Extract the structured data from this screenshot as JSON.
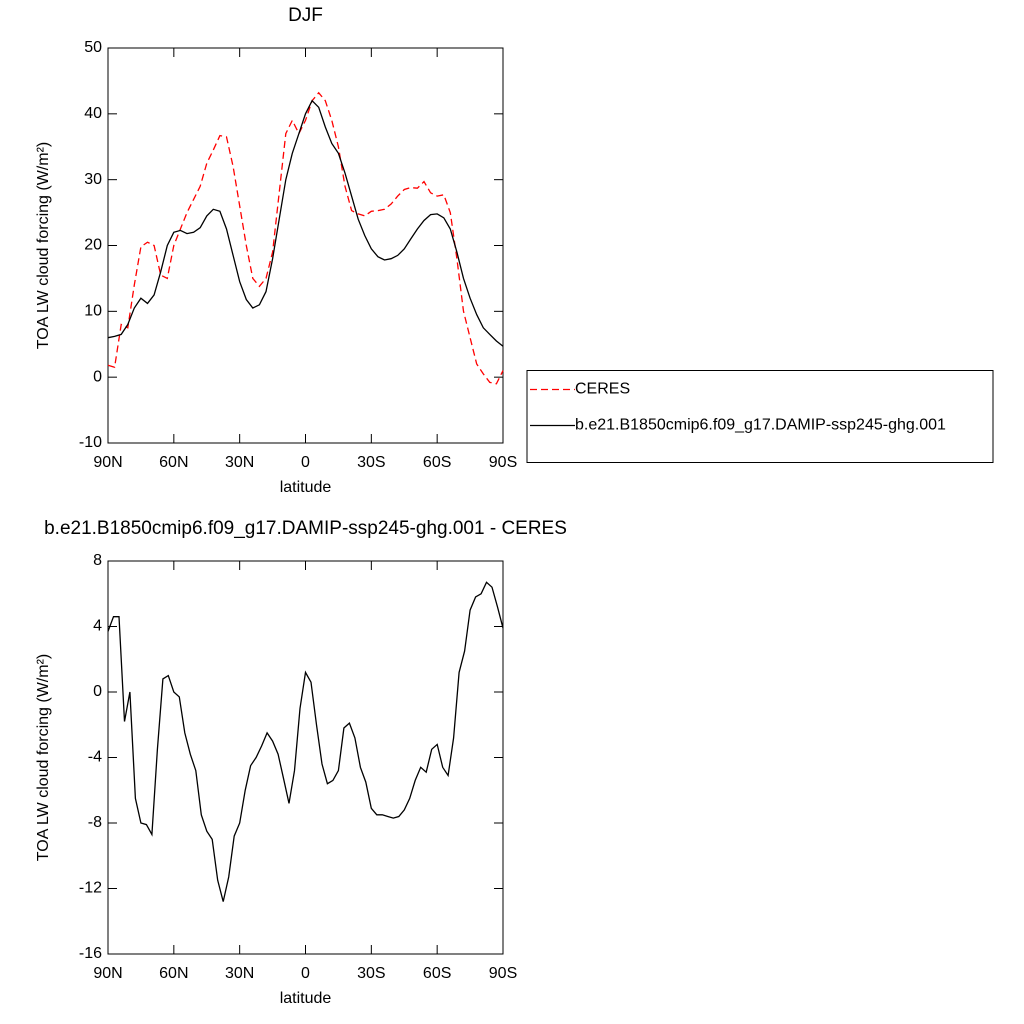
{
  "chart_data": [
    {
      "type": "line",
      "title": "DJF",
      "xlabel": "latitude",
      "ylabel": "TOA LW cloud forcing (W/m²)",
      "xlim": [
        90,
        -90
      ],
      "xticks": [
        {
          "value": 90,
          "label": "90N"
        },
        {
          "value": 60,
          "label": "60N"
        },
        {
          "value": 30,
          "label": "30N"
        },
        0,
        {
          "value": -30,
          "label": "30S"
        },
        {
          "value": -60,
          "label": "60S"
        },
        {
          "value": -90,
          "label": "90S"
        }
      ],
      "ylim": [
        -10,
        50
      ],
      "yticks": [
        -10,
        0,
        10,
        20,
        30,
        40,
        50
      ],
      "x": [
        90,
        87,
        84,
        81,
        78,
        75,
        72,
        69,
        66,
        63,
        60,
        57,
        54,
        51,
        48,
        45,
        42,
        39,
        36,
        33,
        30,
        27,
        24,
        21,
        18,
        15,
        12,
        9,
        6,
        3,
        0,
        -3,
        -6,
        -9,
        -12,
        -15,
        -18,
        -21,
        -24,
        -27,
        -30,
        -33,
        -36,
        -39,
        -42,
        -45,
        -48,
        -51,
        -54,
        -57,
        -60,
        -63,
        -66,
        -69,
        -72,
        -75,
        -78,
        -81,
        -84,
        -87,
        -90
      ],
      "legend": "right",
      "series": [
        {
          "name": "CERES",
          "color": "#ff0000",
          "linestyle": "dashed",
          "values": [
            1.8,
            1.5,
            8,
            7.5,
            14,
            19.8,
            20.5,
            20,
            15.5,
            15,
            20,
            22.5,
            25,
            27,
            29,
            32.5,
            34.5,
            36.7,
            36.5,
            32,
            26,
            20,
            15,
            13.8,
            15,
            19,
            28,
            37,
            39,
            37,
            39,
            42,
            43.2,
            42,
            39,
            35,
            29,
            25.3,
            24.8,
            24.5,
            25.2,
            25.3,
            25.5,
            26.3,
            27.5,
            28.5,
            28.8,
            28.7,
            29.7,
            28,
            27.5,
            27.7,
            25,
            18,
            10,
            6,
            2,
            0.5,
            -0.8,
            -1,
            1
          ]
        },
        {
          "name": "b.e21.B1850cmip6.f09_g17.DAMIP-ssp245-ghg.001",
          "color": "#000000",
          "linestyle": "solid",
          "values": [
            6,
            6.2,
            6.5,
            8,
            10.5,
            12,
            11.2,
            12.5,
            16,
            20,
            22,
            22.3,
            21.8,
            22,
            22.7,
            24.5,
            25.5,
            25.2,
            22.5,
            18.5,
            14.5,
            11.8,
            10.5,
            11,
            13,
            18,
            24,
            30,
            34,
            37,
            40,
            42,
            41,
            38,
            35.5,
            34,
            31,
            27.5,
            24,
            21.5,
            19.5,
            18.3,
            17.8,
            18,
            18.5,
            19.5,
            21,
            22.5,
            23.8,
            24.7,
            24.8,
            24.2,
            22.5,
            19,
            15,
            12,
            9.5,
            7.5,
            6.5,
            5.5,
            4.7
          ]
        }
      ]
    },
    {
      "type": "line",
      "title": "b.e21.B1850cmip6.f09_g17.DAMIP-ssp245-ghg.001 - CERES",
      "xlabel": "latitude",
      "ylabel": "TOA LW cloud forcing (W/m²)",
      "xlim": [
        90,
        -90
      ],
      "xticks": [
        {
          "value": 90,
          "label": "90N"
        },
        {
          "value": 60,
          "label": "60N"
        },
        {
          "value": 30,
          "label": "30N"
        },
        0,
        {
          "value": -30,
          "label": "30S"
        },
        {
          "value": -60,
          "label": "60S"
        },
        {
          "value": -90,
          "label": "90S"
        }
      ],
      "ylim": [
        -16,
        8
      ],
      "yticks": [
        -16,
        -12,
        -8,
        -4,
        0,
        4,
        8
      ],
      "x": [
        90,
        87.5,
        85,
        82.5,
        80,
        77.5,
        75,
        72.5,
        70,
        67.5,
        65,
        62.5,
        60,
        57.5,
        55,
        52.5,
        50,
        47.5,
        45,
        42.5,
        40,
        37.5,
        35,
        32.5,
        30,
        27.5,
        25,
        22.5,
        20,
        17.5,
        15,
        12.5,
        10,
        7.5,
        5,
        2.5,
        0,
        -2.5,
        -5,
        -7.5,
        -10,
        -12.5,
        -15,
        -17.5,
        -20,
        -22.5,
        -25,
        -27.5,
        -30,
        -32.5,
        -35,
        -37.5,
        -40,
        -42.5,
        -45,
        -47.5,
        -50,
        -52.5,
        -55,
        -57.5,
        -60,
        -62.5,
        -65,
        -67.5,
        -70,
        -72.5,
        -75,
        -77.5,
        -80,
        -82.5,
        -85,
        -87.5,
        -90
      ],
      "color": "#000000",
      "values": [
        3.7,
        4.6,
        4.6,
        -1.8,
        0,
        -6.5,
        -8,
        -8.1,
        -8.7,
        -3.5,
        0.8,
        1,
        0,
        -0.3,
        -2.5,
        -3.8,
        -4.8,
        -7.5,
        -8.5,
        -9,
        -11.5,
        -12.8,
        -11.3,
        -8.8,
        -8,
        -6,
        -4.5,
        -4,
        -3.3,
        -2.5,
        -3,
        -3.8,
        -5.3,
        -6.8,
        -4.8,
        -1,
        1.2,
        0.6,
        -2,
        -4.4,
        -5.6,
        -5.4,
        -4.8,
        -2.2,
        -1.9,
        -2.8,
        -4.6,
        -5.5,
        -7.1,
        -7.5,
        -7.5,
        -7.6,
        -7.7,
        -7.6,
        -7.2,
        -6.5,
        -5.4,
        -4.6,
        -4.9,
        -3.5,
        -3.2,
        -4.6,
        -5.1,
        -2.8,
        1.2,
        2.5,
        5,
        5.8,
        6,
        6.7,
        6.4,
        5.2,
        3.9
      ]
    }
  ]
}
